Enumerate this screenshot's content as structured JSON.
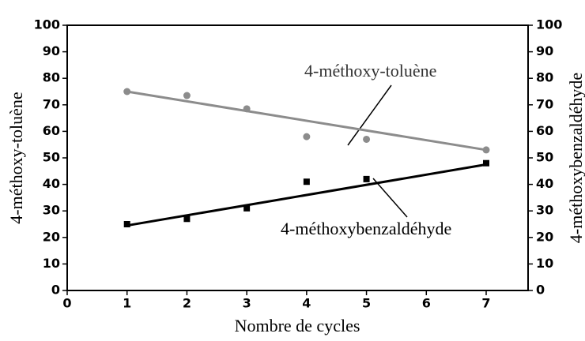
{
  "chart_data": {
    "type": "scatter",
    "x_label": "Nombre de cycles",
    "y_label": "4-méthoxy-toluène",
    "y2_label": "4-méthoxybenzaldéhyde",
    "xlim": [
      0,
      7.7
    ],
    "xticks": [
      0,
      1,
      2,
      3,
      4,
      5,
      6,
      7
    ],
    "ylim": [
      0,
      100
    ],
    "yticks": [
      0,
      10,
      20,
      30,
      40,
      50,
      60,
      70,
      80,
      90,
      100
    ],
    "y2lim": [
      0,
      100
    ],
    "y2ticks": [
      0,
      10,
      20,
      30,
      40,
      50,
      60,
      70,
      80,
      90,
      100
    ],
    "series": [
      {
        "name": "4-méthoxy-toluène",
        "color": "#8c8c8c",
        "marker": "circle",
        "x": [
          1,
          2,
          3,
          4,
          5,
          7
        ],
        "values": [
          75,
          73.5,
          68.5,
          58,
          57,
          53
        ],
        "trendline": {
          "x": [
            1,
            7
          ],
          "values": [
            75,
            53
          ]
        }
      },
      {
        "name": "4-méthoxybenzaldéhyde",
        "color": "#000000",
        "marker": "square",
        "axis": "y2",
        "x": [
          1,
          2,
          3,
          4,
          5,
          7
        ],
        "values": [
          25,
          27,
          31,
          41,
          42,
          48
        ],
        "trendline": {
          "x": [
            1,
            7
          ],
          "values": [
            24.5,
            47.5
          ]
        }
      }
    ]
  }
}
